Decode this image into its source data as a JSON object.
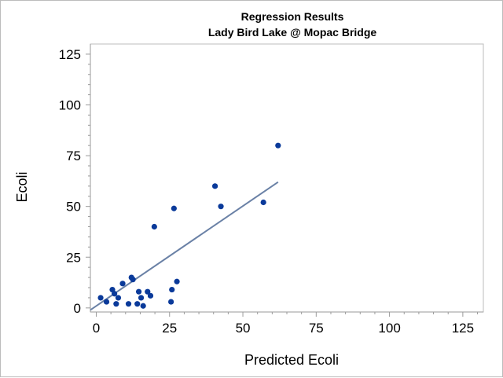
{
  "chart_data": {
    "type": "scatter",
    "title": "Regression Results",
    "subtitle": "Lady Bird Lake @ Mopac Bridge",
    "xlabel": "Predicted Ecoli",
    "ylabel": "Ecoli",
    "xlim": [
      -2,
      132
    ],
    "ylim": [
      -2,
      130
    ],
    "xticks": [
      0,
      25,
      50,
      75,
      100,
      125
    ],
    "yticks": [
      0,
      25,
      50,
      75,
      100,
      125
    ],
    "grid": false,
    "colors": {
      "points": "#0a3a9a",
      "fit_line": "#6a81a6",
      "frame": "#bcbcbc",
      "axis": "#9a9a9a"
    },
    "series": [
      {
        "type": "scatter",
        "points": [
          {
            "x": 1.5,
            "y": 5
          },
          {
            "x": 3.5,
            "y": 3
          },
          {
            "x": 5.5,
            "y": 9
          },
          {
            "x": 6.2,
            "y": 7
          },
          {
            "x": 6.8,
            "y": 2
          },
          {
            "x": 7.5,
            "y": 5
          },
          {
            "x": 9.0,
            "y": 12
          },
          {
            "x": 11.0,
            "y": 2
          },
          {
            "x": 12.0,
            "y": 15
          },
          {
            "x": 12.5,
            "y": 14
          },
          {
            "x": 14.0,
            "y": 2
          },
          {
            "x": 14.5,
            "y": 8
          },
          {
            "x": 15.3,
            "y": 5
          },
          {
            "x": 16.0,
            "y": 1
          },
          {
            "x": 17.5,
            "y": 8
          },
          {
            "x": 18.5,
            "y": 6
          },
          {
            "x": 19.8,
            "y": 40
          },
          {
            "x": 25.5,
            "y": 3
          },
          {
            "x": 25.8,
            "y": 9
          },
          {
            "x": 26.5,
            "y": 49
          },
          {
            "x": 27.5,
            "y": 13
          },
          {
            "x": 40.5,
            "y": 60
          },
          {
            "x": 42.5,
            "y": 50
          },
          {
            "x": 57.0,
            "y": 52
          },
          {
            "x": 62.0,
            "y": 80
          }
        ]
      },
      {
        "type": "line",
        "points": [
          {
            "x": -2,
            "y": -1
          },
          {
            "x": 62,
            "y": 62
          }
        ]
      }
    ]
  }
}
